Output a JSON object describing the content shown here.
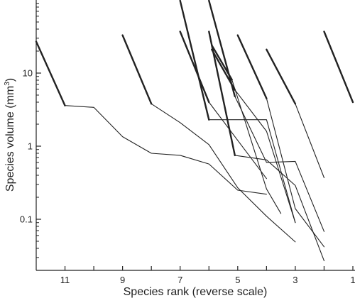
{
  "chart_data": {
    "type": "line",
    "title": "",
    "xlabel": "Species rank (reverse scale)",
    "ylabel_main": "Species volume (mm",
    "ylabel_sup": "3",
    "ylabel_close": ")",
    "x_reversed": true,
    "xlim": [
      12,
      1
    ],
    "ylim": [
      0.02,
      100
    ],
    "y_scale": "log",
    "x_ticks": [
      {
        "value": 11,
        "label": "11"
      },
      {
        "value": 10,
        "label": ""
      },
      {
        "value": 9,
        "label": "9"
      },
      {
        "value": 8,
        "label": ""
      },
      {
        "value": 7,
        "label": "7"
      },
      {
        "value": 6,
        "label": ""
      },
      {
        "value": 5,
        "label": "5"
      },
      {
        "value": 4,
        "label": ""
      },
      {
        "value": 3,
        "label": "3"
      },
      {
        "value": 2,
        "label": ""
      },
      {
        "value": 1,
        "label": "1"
      }
    ],
    "y_ticks": [
      {
        "value": 10,
        "label": "10"
      },
      {
        "value": 1,
        "label": "1"
      },
      {
        "value": 0.1,
        "label": "0.1"
      }
    ],
    "grid": false,
    "legend": "none",
    "line_color": "#222222",
    "series": [
      {
        "weight": "thick",
        "points": [
          [
            12,
            27
          ],
          [
            11,
            3.6
          ]
        ]
      },
      {
        "weight": "thin",
        "points": [
          [
            11,
            3.6
          ],
          [
            10,
            3.4
          ],
          [
            9,
            1.35
          ],
          [
            8,
            0.8
          ],
          [
            7,
            0.75
          ],
          [
            6,
            0.57
          ],
          [
            5,
            0.25
          ],
          [
            4,
            0.22
          ]
        ]
      },
      {
        "weight": "thick",
        "points": [
          [
            9,
            33
          ],
          [
            8,
            3.8
          ]
        ]
      },
      {
        "weight": "thin",
        "points": [
          [
            8,
            3.8
          ],
          [
            7,
            2.1
          ],
          [
            6,
            1.05
          ],
          [
            5,
            0.27
          ],
          [
            4,
            0.11
          ],
          [
            3,
            0.049
          ]
        ]
      },
      {
        "weight": "thick",
        "points": [
          [
            7,
            98
          ],
          [
            6,
            2.3
          ]
        ]
      },
      {
        "weight": "thin",
        "points": [
          [
            6,
            2.3
          ],
          [
            4,
            2.3
          ],
          [
            3,
            0.09
          ]
        ]
      },
      {
        "weight": "thick",
        "points": [
          [
            7,
            37
          ],
          [
            6,
            4
          ]
        ]
      },
      {
        "weight": "thin",
        "points": [
          [
            6,
            4
          ],
          [
            5,
            1.2
          ],
          [
            4,
            0.36
          ]
        ]
      },
      {
        "weight": "thick",
        "points": [
          [
            6,
            98
          ],
          [
            5.1,
            4.8
          ]
        ]
      },
      {
        "weight": "thin",
        "points": [
          [
            5.1,
            4.8
          ],
          [
            4,
            0.6
          ],
          [
            3,
            0.62
          ],
          [
            2,
            0.068
          ]
        ]
      },
      {
        "weight": "thick",
        "points": [
          [
            6,
            37
          ],
          [
            5.1,
            0.75
          ]
        ]
      },
      {
        "weight": "thin",
        "points": [
          [
            5.1,
            0.75
          ],
          [
            4,
            0.65
          ],
          [
            3,
            0.29
          ],
          [
            2,
            0.027
          ]
        ]
      },
      {
        "weight": "thick",
        "points": [
          [
            5.9,
            21
          ],
          [
            5.1,
            5.9
          ]
        ]
      },
      {
        "weight": "thin",
        "points": [
          [
            5.1,
            5.9
          ],
          [
            4,
            1.6
          ],
          [
            3,
            0.09
          ]
        ]
      },
      {
        "weight": "thick",
        "points": [
          [
            5.9,
            24
          ],
          [
            5.2,
            8.1
          ]
        ]
      },
      {
        "weight": "thin",
        "points": [
          [
            5.2,
            8.1
          ],
          [
            4,
            0.26
          ],
          [
            3.5,
            0.12
          ]
        ]
      },
      {
        "weight": "thick",
        "points": [
          [
            5,
            33
          ],
          [
            4,
            4.5
          ]
        ]
      },
      {
        "weight": "thin",
        "points": [
          [
            4,
            4.5
          ],
          [
            3,
            0.14
          ],
          [
            2,
            0.042
          ]
        ]
      },
      {
        "weight": "thick",
        "points": [
          [
            4,
            21
          ],
          [
            3,
            3.8
          ]
        ]
      },
      {
        "weight": "thin",
        "points": [
          [
            3,
            3.8
          ],
          [
            2,
            0.37
          ]
        ]
      },
      {
        "weight": "thick",
        "points": [
          [
            2,
            37
          ],
          [
            1,
            4
          ]
        ]
      }
    ]
  }
}
